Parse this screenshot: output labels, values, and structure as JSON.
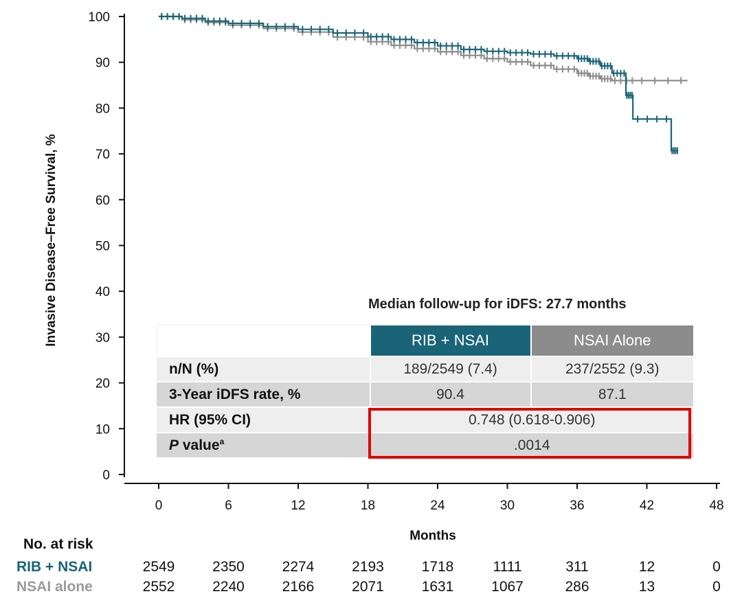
{
  "chart_data": {
    "type": "line",
    "subtype": "kaplan-meier step",
    "xlabel": "Months",
    "ylabel": "Invasive Disease–Free Survival, %",
    "xlim": [
      0,
      48
    ],
    "ylim": [
      0,
      100
    ],
    "x_ticks": [
      0,
      6,
      12,
      18,
      24,
      30,
      36,
      42,
      48
    ],
    "y_ticks": [
      0,
      10,
      20,
      30,
      40,
      50,
      60,
      70,
      80,
      90,
      100
    ],
    "grid": false,
    "colors": {
      "RIB + NSAI": "#1a6478",
      "NSAI alone": "#8c8c8c",
      "highlight": "#e00000"
    },
    "series": [
      {
        "name": "RIB + NSAI",
        "x": [
          0,
          2,
          4,
          6,
          9,
          12,
          15,
          18,
          20,
          22,
          24,
          26,
          28,
          30,
          32,
          34,
          36,
          37,
          38,
          39,
          40.2,
          40.8,
          44.1,
          44.7
        ],
        "y": [
          100,
          99.6,
          99,
          98.5,
          97.8,
          97.2,
          96.4,
          95.6,
          95,
          94.3,
          93.6,
          92.8,
          92.4,
          92.1,
          91.8,
          91.4,
          90.8,
          90.2,
          89.2,
          87.6,
          82.8,
          77.6,
          70.7,
          70.7
        ]
      },
      {
        "name": "NSAI alone",
        "x": [
          0,
          2,
          4,
          6,
          9,
          12,
          15,
          18,
          20,
          22,
          24,
          26,
          28,
          30,
          32,
          34,
          36,
          37,
          38,
          39,
          41,
          45.5
        ],
        "y": [
          100,
          99.3,
          98.7,
          98.1,
          97.4,
          96.6,
          95.5,
          94.5,
          93.7,
          93,
          92.3,
          91.5,
          90.8,
          90.1,
          89.3,
          88.5,
          87.6,
          87,
          86.4,
          86,
          86,
          86
        ]
      }
    ]
  },
  "stats_table": {
    "caption": "Median follow-up for iDFS: 27.7 months",
    "headers": [
      "",
      "RIB + NSAI",
      "NSAI Alone"
    ],
    "rows": [
      {
        "label": "n/N (%)",
        "rib": "189/2549 (7.4)",
        "nsai": "237/2552 (9.3)"
      },
      {
        "label": "3-Year iDFS rate, %",
        "rib": "90.4",
        "nsai": "87.1"
      },
      {
        "label": "HR (95% CI)",
        "value": "0.748 (0.618-0.906)"
      },
      {
        "label_italic": "P",
        "label": " value",
        "sup": "a",
        "value": ".0014"
      }
    ]
  },
  "at_risk": {
    "title": "No. at risk",
    "rows": [
      {
        "label": "RIB + NSAI",
        "values": [
          "2549",
          "2350",
          "2274",
          "2193",
          "1718",
          "1111",
          "311",
          "12",
          "0"
        ]
      },
      {
        "label": "NSAI alone",
        "values": [
          "2552",
          "2240",
          "2166",
          "2071",
          "1631",
          "1067",
          "286",
          "13",
          "0"
        ]
      }
    ]
  }
}
